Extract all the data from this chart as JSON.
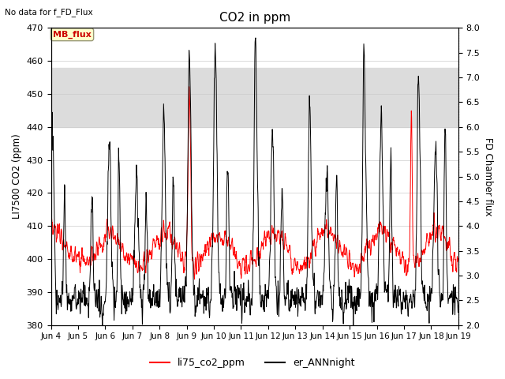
{
  "title": "CO2 in ppm",
  "top_left_text": "No data for f_FD_Flux",
  "legend_box_text": "MB_flux",
  "ylabel_left": "LI7500 CO2 (ppm)",
  "ylabel_right": "FD Chamber flux",
  "ylim_left": [
    380,
    470
  ],
  "ylim_right": [
    2.0,
    8.0
  ],
  "yticks_left": [
    380,
    390,
    400,
    410,
    420,
    430,
    440,
    450,
    460,
    470
  ],
  "yticks_right": [
    2.0,
    2.5,
    3.0,
    3.5,
    4.0,
    4.5,
    5.0,
    5.5,
    6.0,
    6.5,
    7.0,
    7.5,
    8.0
  ],
  "band_lower": 440,
  "band_upper": 458,
  "color_red": "#FF0000",
  "color_black": "#000000",
  "color_band": "#DCDCDC",
  "legend_labels": [
    "li75_co2_ppm",
    "er_ANNnight"
  ],
  "legend_colors": [
    "#FF0000",
    "#000000"
  ],
  "box_facecolor": "#FFFFCC",
  "box_edgecolor": "#999977",
  "box_text_color": "#CC0000",
  "figsize": [
    6.4,
    4.8
  ],
  "dpi": 100
}
